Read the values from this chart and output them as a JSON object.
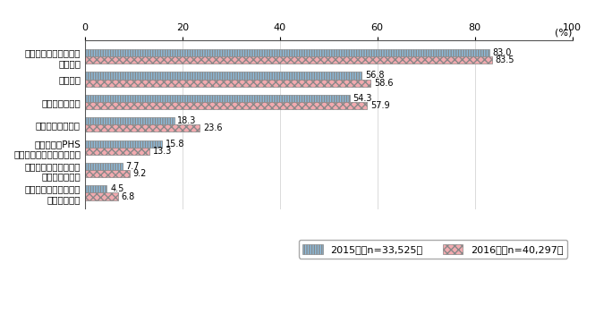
{
  "categories": [
    "インターネット対応型\nテレビ受信機",
    "インターネット対応型\n家庭用ゲーム機",
    "携帯電話・PHS\n（スマートフォンを除く）",
    "タブレット型端末",
    "スマートフォン",
    "パソコン",
    "インターネット利用率\n（全体）"
  ],
  "values_2015": [
    4.5,
    7.7,
    15.8,
    18.3,
    54.3,
    56.8,
    83.0
  ],
  "values_2016": [
    6.8,
    9.2,
    13.3,
    23.6,
    57.9,
    58.6,
    83.5
  ],
  "color_2015": "#8BBCDE",
  "color_2016": "#F2AAAF",
  "hatch_2015": "||||||",
  "hatch_2016": "xxxx",
  "legend_2015": "2015年（n=33,525）",
  "legend_2016": "2016年（n=40,297）",
  "percent_label": "(%)",
  "xlim": [
    0,
    100
  ],
  "xticks": [
    0,
    20,
    40,
    60,
    80,
    100
  ],
  "bar_height": 0.32,
  "value_fontsize": 7.0,
  "label_fontsize": 7.5,
  "footnote_fontsize": 7.0,
  "legend_fontsize": 8.0
}
